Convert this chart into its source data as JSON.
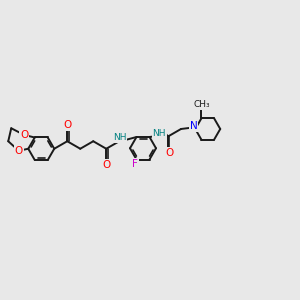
{
  "background_color": "#e8e8e8",
  "bond_color": "#1a1a1a",
  "bond_width": 1.4,
  "atom_colors": {
    "O": "#ff0000",
    "N": "#0000ff",
    "F": "#cc00cc",
    "NH": "#008080",
    "C": "#1a1a1a"
  },
  "font_size_atom": 7.5,
  "font_size_small": 6.5,
  "scale": 1.0
}
